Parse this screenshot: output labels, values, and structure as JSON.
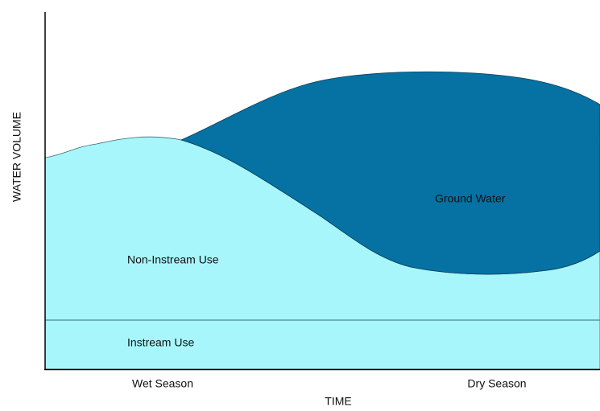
{
  "y_axis_label": "WATER VOLUME",
  "x_axis_label": "TIME",
  "x_labels": [
    "Wet Season",
    "Dry Season"
  ],
  "regions": [
    "Non-Instream Use",
    "Ground Water",
    "Instream Use"
  ]
}
